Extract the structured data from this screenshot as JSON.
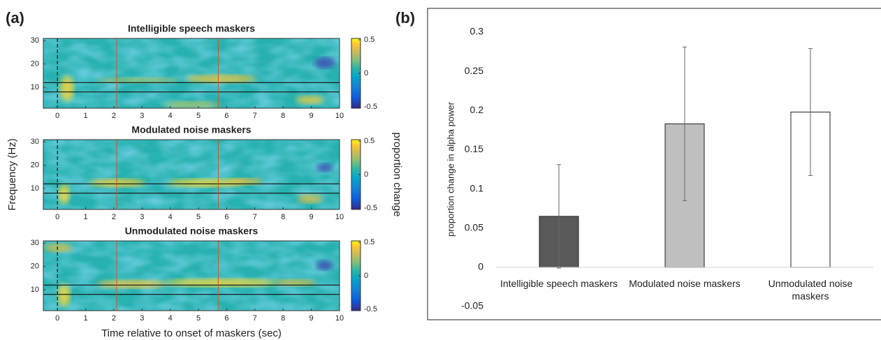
{
  "panel_labels": [
    "(a)",
    "(b)"
  ],
  "chart_data": [
    {
      "type": "heatmap",
      "title": "Intelligible speech maskers",
      "xlim": [
        -0.5,
        10
      ],
      "xticks": [
        0,
        1,
        2,
        3,
        4,
        5,
        6,
        7,
        8,
        9,
        10
      ],
      "ylim": [
        1,
        31
      ],
      "yticks": [
        10,
        20,
        30
      ],
      "clim": [
        -0.5,
        0.5
      ],
      "cticks": [
        -0.5,
        0,
        0.5
      ],
      "hlines": [
        8,
        12
      ],
      "vlines": [
        2.1,
        5.7
      ],
      "dashed_vline": 0
    },
    {
      "type": "heatmap",
      "title": "Modulated noise maskers",
      "ylabel": "Frequency (Hz)",
      "colorbar_label": "proportion change",
      "xlim": [
        -0.5,
        10
      ],
      "xticks": [
        0,
        1,
        2,
        3,
        4,
        5,
        6,
        7,
        8,
        9,
        10
      ],
      "ylim": [
        1,
        31
      ],
      "yticks": [
        10,
        20,
        30
      ],
      "clim": [
        -0.5,
        0.5
      ],
      "cticks": [
        -0.5,
        0,
        0.5
      ],
      "hlines": [
        8,
        12
      ],
      "vlines": [
        2.1,
        5.7
      ],
      "dashed_vline": 0
    },
    {
      "type": "heatmap",
      "title": "Unmodulated noise maskers",
      "xlabel": "Time relative to onset of maskers (sec)",
      "xlim": [
        -0.5,
        10
      ],
      "xticks": [
        0,
        1,
        2,
        3,
        4,
        5,
        6,
        7,
        8,
        9,
        10
      ],
      "ylim": [
        1,
        31
      ],
      "yticks": [
        10,
        20,
        30
      ],
      "clim": [
        -0.5,
        0.5
      ],
      "cticks": [
        -0.5,
        0,
        0.5
      ],
      "hlines": [
        8,
        12
      ],
      "vlines": [
        2.1,
        5.7
      ],
      "dashed_vline": 0
    },
    {
      "type": "bar",
      "ylabel": "proportion change in alpha power",
      "categories": [
        "Intelligible speech maskers",
        "Modulated noise maskers",
        "Unmodulated noise maskers"
      ],
      "values": [
        0.065,
        0.183,
        0.198
      ],
      "errors": [
        0.066,
        0.098,
        0.081
      ],
      "colors": [
        "#595959",
        "#bfbfbf",
        "#ffffff"
      ],
      "ylim": [
        -0.05,
        0.3
      ],
      "yticks": [
        -0.05,
        0,
        0.05,
        0.1,
        0.15,
        0.2,
        0.25,
        0.3
      ]
    }
  ]
}
